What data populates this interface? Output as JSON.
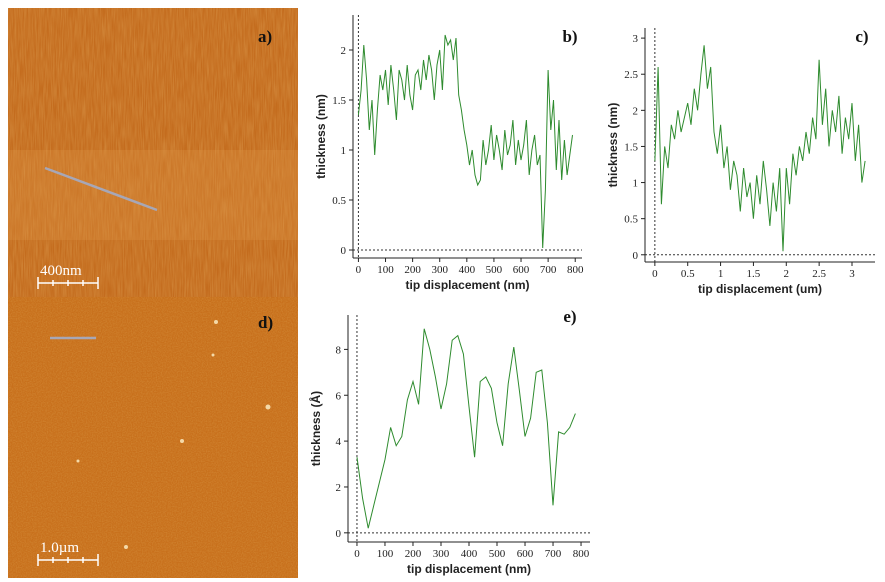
{
  "panels": [
    {
      "label": "a)",
      "scale_bar": "400nm"
    },
    {
      "label": "d)",
      "scale_bar": "1.0µm"
    }
  ],
  "chart_data": [
    {
      "type": "line",
      "label": "b)",
      "x_label": "tip displacement (nm)",
      "y_label": "thickness (nm)",
      "xlim": [
        -20,
        825
      ],
      "ylim": [
        -0.08,
        2.35
      ],
      "xticks": [
        0,
        100,
        200,
        300,
        400,
        500,
        600,
        700,
        800
      ],
      "yticks": [
        0,
        0.5,
        1,
        1.5,
        2
      ],
      "series": [
        {
          "color": "#2e8b2e",
          "x": [
            0,
            10,
            20,
            30,
            40,
            50,
            60,
            70,
            80,
            90,
            100,
            110,
            120,
            130,
            140,
            150,
            160,
            170,
            180,
            190,
            200,
            210,
            220,
            230,
            240,
            250,
            260,
            270,
            280,
            290,
            300,
            310,
            320,
            330,
            340,
            350,
            360,
            370,
            380,
            390,
            400,
            410,
            420,
            430,
            440,
            450,
            460,
            470,
            480,
            490,
            500,
            510,
            520,
            530,
            540,
            550,
            560,
            570,
            580,
            590,
            600,
            610,
            620,
            630,
            640,
            650,
            660,
            670,
            680,
            690,
            700,
            710,
            720,
            730,
            740,
            750,
            760,
            770,
            780,
            790
          ],
          "values": [
            1.35,
            1.6,
            2.05,
            1.7,
            1.2,
            1.5,
            0.95,
            1.4,
            1.75,
            1.6,
            1.8,
            1.45,
            1.85,
            1.6,
            1.3,
            1.8,
            1.7,
            1.5,
            1.85,
            1.55,
            1.4,
            1.75,
            1.8,
            1.6,
            1.9,
            1.7,
            1.95,
            1.8,
            1.5,
            1.85,
            2.0,
            1.6,
            2.15,
            2.05,
            2.1,
            1.9,
            2.12,
            1.55,
            1.4,
            1.2,
            1.05,
            0.85,
            1.0,
            0.75,
            0.65,
            0.7,
            1.1,
            0.85,
            1.0,
            1.25,
            0.9,
            1.15,
            1.0,
            0.8,
            1.2,
            0.95,
            1.05,
            1.3,
            0.85,
            1.1,
            0.9,
            1.05,
            1.3,
            0.75,
            1.0,
            1.15,
            0.85,
            0.95,
            0.02,
            0.6,
            1.8,
            1.2,
            1.5,
            0.8,
            1.3,
            0.7,
            1.1,
            0.75,
            0.95,
            1.15
          ]
        }
      ]
    },
    {
      "type": "line",
      "label": "c)",
      "x_label": "tip displacement (um)",
      "y_label": "thickness (nm)",
      "xlim": [
        -0.15,
        3.35
      ],
      "ylim": [
        -0.1,
        3.14
      ],
      "xticks": [
        0,
        0.5,
        1,
        1.5,
        2,
        2.5,
        3
      ],
      "yticks": [
        0,
        0.5,
        1,
        1.5,
        2,
        2.5,
        3
      ],
      "series": [
        {
          "color": "#2e8b2e",
          "x": [
            0,
            0.05,
            0.1,
            0.15,
            0.2,
            0.25,
            0.3,
            0.35,
            0.4,
            0.45,
            0.5,
            0.55,
            0.6,
            0.65,
            0.7,
            0.75,
            0.8,
            0.85,
            0.9,
            0.95,
            1,
            1.05,
            1.1,
            1.15,
            1.2,
            1.25,
            1.3,
            1.35,
            1.4,
            1.45,
            1.5,
            1.55,
            1.6,
            1.65,
            1.7,
            1.75,
            1.8,
            1.85,
            1.9,
            1.95,
            2,
            2.05,
            2.1,
            2.15,
            2.2,
            2.25,
            2.3,
            2.35,
            2.4,
            2.45,
            2.5,
            2.55,
            2.6,
            2.65,
            2.7,
            2.75,
            2.8,
            2.85,
            2.9,
            2.95,
            3,
            3.05,
            3.1,
            3.15,
            3.2
          ],
          "values": [
            1.3,
            2.6,
            0.7,
            1.5,
            1.2,
            1.8,
            1.6,
            2.0,
            1.7,
            1.9,
            2.1,
            1.8,
            2.3,
            2.0,
            2.5,
            2.9,
            2.3,
            2.6,
            1.7,
            1.4,
            1.8,
            1.2,
            1.5,
            0.9,
            1.3,
            1.1,
            0.6,
            1.2,
            0.8,
            1.0,
            0.5,
            1.1,
            0.7,
            1.3,
            0.9,
            0.4,
            1.0,
            0.6,
            1.2,
            0.05,
            1.2,
            0.7,
            1.4,
            1.1,
            1.5,
            1.3,
            1.7,
            1.4,
            1.9,
            1.6,
            2.7,
            1.8,
            2.3,
            1.5,
            2.0,
            1.7,
            2.2,
            1.4,
            1.9,
            1.6,
            2.1,
            1.3,
            1.8,
            1.0,
            1.3
          ]
        }
      ]
    },
    {
      "type": "line",
      "label": "e)",
      "x_label": "tip displacement (nm)",
      "y_label": "thickness (Å)",
      "xlim": [
        -32,
        832
      ],
      "ylim": [
        -0.4,
        9.5
      ],
      "xticks": [
        0,
        100,
        200,
        300,
        400,
        500,
        600,
        700,
        800
      ],
      "yticks": [
        0,
        2,
        4,
        6,
        8
      ],
      "series": [
        {
          "color": "#2e8b2e",
          "x": [
            0,
            20,
            40,
            60,
            80,
            100,
            120,
            140,
            160,
            180,
            200,
            220,
            240,
            260,
            280,
            300,
            320,
            340,
            360,
            380,
            400,
            420,
            440,
            460,
            480,
            500,
            520,
            540,
            560,
            580,
            600,
            620,
            640,
            660,
            680,
            700,
            720,
            740,
            760,
            780
          ],
          "values": [
            3.3,
            1.5,
            0.2,
            1.2,
            2.2,
            3.2,
            4.6,
            3.8,
            4.2,
            5.8,
            6.6,
            5.6,
            8.9,
            8.0,
            6.8,
            5.4,
            6.5,
            8.4,
            8.6,
            7.8,
            5.5,
            3.3,
            6.6,
            6.8,
            6.3,
            4.8,
            3.8,
            6.5,
            8.1,
            6.2,
            4.2,
            5.0,
            7.0,
            7.1,
            4.8,
            1.2,
            4.4,
            4.3,
            4.6,
            5.2
          ]
        }
      ]
    }
  ]
}
